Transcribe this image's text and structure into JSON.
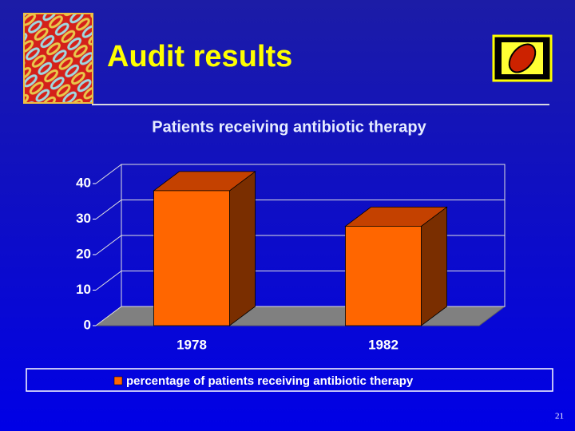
{
  "slide_title": "Audit results",
  "page_number": "21",
  "chart_data": {
    "type": "bar3d",
    "title": "Patients receiving antibiotic therapy",
    "categories": [
      "1978",
      "1982"
    ],
    "series": [
      {
        "name": "percentage of patients receiving antibiotic therapy",
        "color": "#ff6600",
        "values": [
          38,
          28
        ]
      }
    ],
    "ylim": [
      0,
      40
    ],
    "yticks": [
      0,
      10,
      20,
      30,
      40
    ],
    "grid": true,
    "legend": "bottom"
  }
}
